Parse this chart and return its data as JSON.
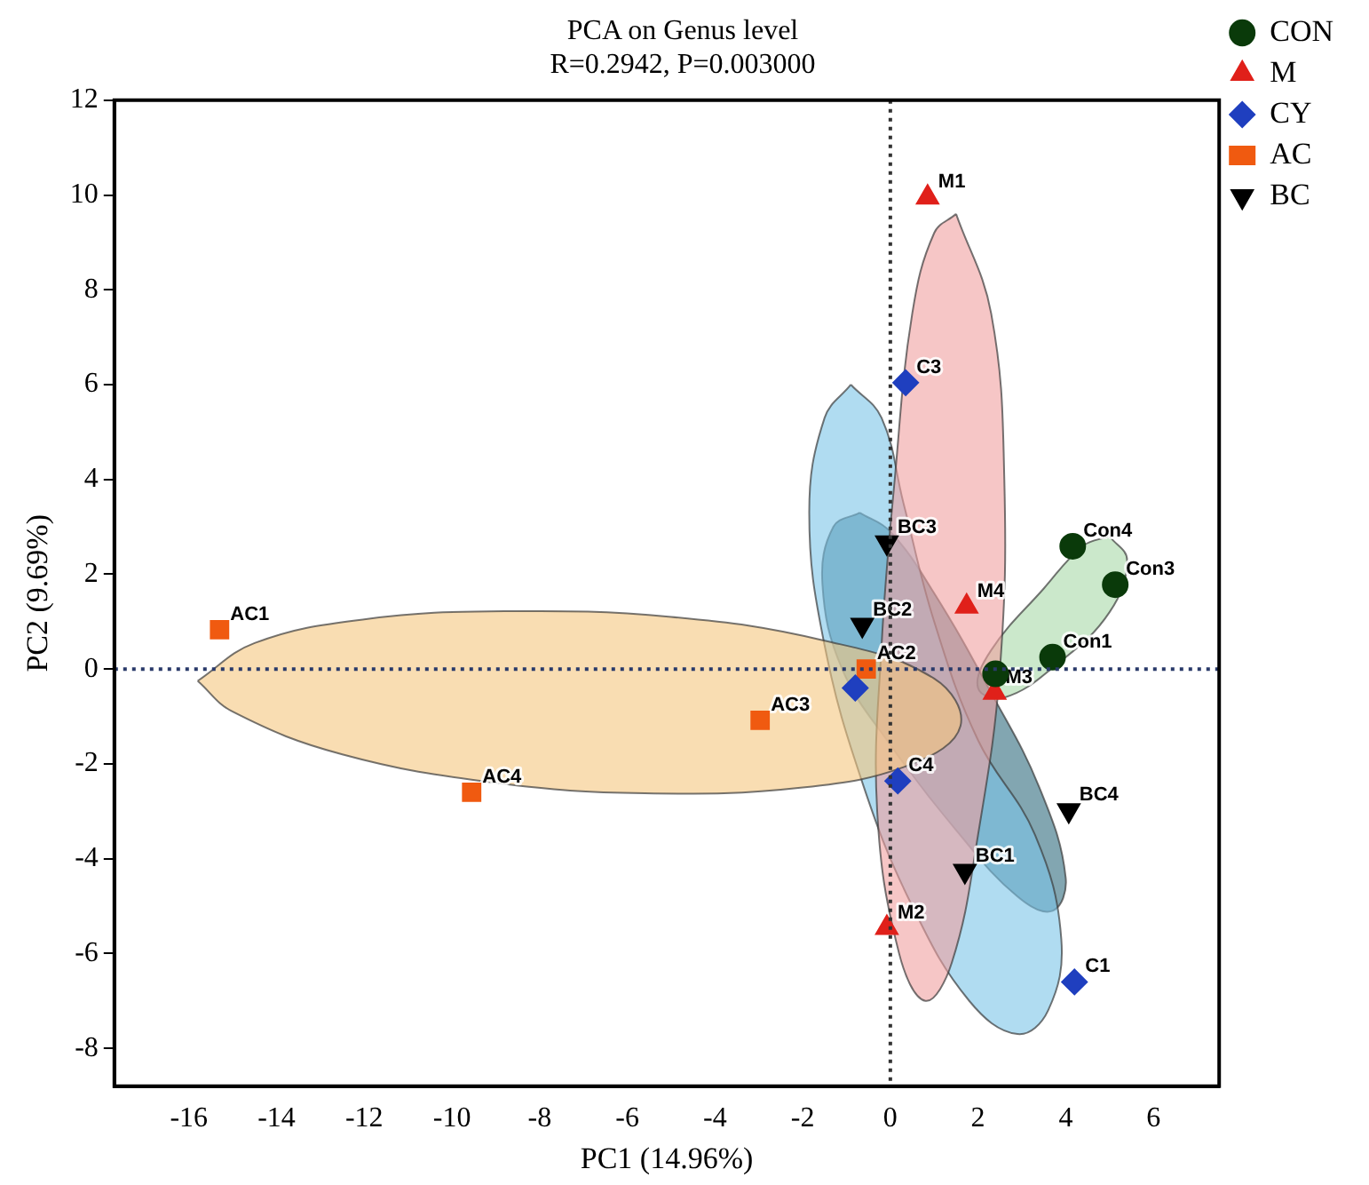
{
  "chart_data": {
    "type": "scatter",
    "title": "PCA on Genus level",
    "subtitle": "R=0.2942, P=0.003000",
    "xlabel": "PC1 (14.96%)",
    "ylabel": "PC2 (9.69%)",
    "xlim": [
      -17.7,
      7.5
    ],
    "ylim": [
      -8.8,
      12
    ],
    "xticks": [
      -16,
      -14,
      -12,
      -10,
      -8,
      -6,
      -4,
      -2,
      0,
      2,
      4,
      6
    ],
    "yticks": [
      -8,
      -6,
      -4,
      -2,
      0,
      2,
      4,
      6,
      8,
      10,
      12
    ],
    "grid": false,
    "legend": "top right",
    "series": [
      {
        "type": "area",
        "color": "#f5c77e",
        "x": [
          -15.8,
          -14.5,
          -12,
          -8.8,
          -5,
          -1.5,
          1,
          1.6,
          0.5,
          -2,
          -5.6,
          -9,
          -12.5,
          -15
        ],
        "values": [
          -0.25,
          0.55,
          1.05,
          1.22,
          1.1,
          0.6,
          -0.2,
          -1.2,
          -2.0,
          -2.5,
          -2.62,
          -2.4,
          -1.8,
          -0.9
        ]
      },
      {
        "type": "area",
        "color": "#f0a0a0",
        "x": [
          1.5,
          2.3,
          2.6,
          2.5,
          2.0,
          1.4,
          0.8,
          0.2,
          -0.3,
          -0.2,
          0.1,
          0.5,
          1.0
        ],
        "values": [
          9.6,
          7.5,
          4,
          0,
          -3.5,
          -6.2,
          -7.0,
          -6,
          -3,
          0.5,
          4,
          7.5,
          9.2
        ]
      },
      {
        "type": "area",
        "color": "#7cc4e8",
        "x": [
          -0.9,
          -0.2,
          0.3,
          1.0,
          2,
          3.3,
          3.9,
          3.6,
          2.9,
          1.8,
          0.5,
          -0.6,
          -1.5,
          -1.85,
          -1.5
        ],
        "values": [
          6.0,
          5.3,
          3.5,
          1,
          -1.5,
          -3.5,
          -5.7,
          -7.2,
          -7.7,
          -7,
          -5,
          -2.5,
          0.5,
          3.3,
          5.3
        ]
      },
      {
        "type": "area",
        "color": "#2f6b7d",
        "x": [
          -0.7,
          0,
          1,
          2.3,
          3.4,
          4.0,
          3.7,
          2.9,
          1.5,
          0,
          -1.1,
          -1.55,
          -1.3
        ],
        "values": [
          3.3,
          2.9,
          1.6,
          -0.5,
          -2.5,
          -4.4,
          -5.1,
          -4.8,
          -3.4,
          -1.6,
          0,
          1.8,
          3
        ]
      },
      {
        "type": "area",
        "color": "#a8d8a8",
        "x": [
          5.0,
          5.4,
          5.0,
          3.8,
          2.6,
          2.0,
          2.3,
          3.5,
          4.4
        ],
        "values": [
          2.8,
          2.3,
          1.2,
          0.1,
          -0.6,
          -0.4,
          0.4,
          1.7,
          2.6
        ]
      },
      {
        "name": "CON",
        "marker": "circle",
        "color": "#0a3a0a",
        "x": [
          3.7,
          2.4,
          5.13,
          4.16
        ],
        "values": [
          0.25,
          -0.1,
          1.78,
          2.59
        ]
      },
      {
        "name": "M",
        "marker": "triangle",
        "color": "#e0201a",
        "x": [
          0.85,
          -0.08,
          2.38,
          1.74
        ],
        "values": [
          9.95,
          -5.46,
          -0.5,
          1.32
        ]
      },
      {
        "name": "CY",
        "marker": "diamond",
        "color": "#1f3fbf",
        "x": [
          4.2,
          -0.8,
          0.35,
          0.17
        ],
        "values": [
          -6.6,
          -0.4,
          6.04,
          -2.36
        ]
      },
      {
        "name": "AC",
        "marker": "square",
        "color": "#f05a10",
        "x": [
          -15.3,
          -0.55,
          -2.97,
          -9.55
        ],
        "values": [
          0.83,
          0.0,
          -1.08,
          -2.6
        ]
      },
      {
        "name": "BC",
        "marker": "triangle_down",
        "color": "#000000",
        "x": [
          1.7,
          -0.64,
          -0.08,
          4.07
        ],
        "values": [
          -4.26,
          0.93,
          2.67,
          -2.98
        ]
      }
    ],
    "ref_lines": [
      {
        "axis": "x",
        "value": 0,
        "line_style": "dotted",
        "color": "#333333"
      },
      {
        "axis": "y",
        "value": 0,
        "line_style": "dotted",
        "color": "#2a3a6a"
      }
    ],
    "annotations": [
      {
        "text": "Con1",
        "x": 3.7,
        "y": 0.25
      },
      {
        "text": "Con3",
        "x": 5.13,
        "y": 1.78
      },
      {
        "text": "Con4",
        "x": 4.16,
        "y": 2.59
      },
      {
        "text": "M1",
        "x": 0.85,
        "y": 9.95
      },
      {
        "text": "M2",
        "x": -0.08,
        "y": -5.46
      },
      {
        "text": "M3",
        "x": 2.38,
        "y": -0.5
      },
      {
        "text": "M4",
        "x": 1.74,
        "y": 1.32
      },
      {
        "text": "C1",
        "x": 4.2,
        "y": -6.6
      },
      {
        "text": "C3",
        "x": 0.35,
        "y": 6.04
      },
      {
        "text": "C4",
        "x": 0.17,
        "y": -2.36
      },
      {
        "text": "AC1",
        "x": -15.3,
        "y": 0.83
      },
      {
        "text": "AC2",
        "x": -0.55,
        "y": 0.0
      },
      {
        "text": "AC3",
        "x": -2.97,
        "y": -1.08
      },
      {
        "text": "AC4",
        "x": -9.55,
        "y": -2.6
      },
      {
        "text": "BC1",
        "x": 1.7,
        "y": -4.26
      },
      {
        "text": "BC2",
        "x": -0.64,
        "y": 0.93
      },
      {
        "text": "BC3",
        "x": -0.08,
        "y": 2.67
      },
      {
        "text": "BC4",
        "x": 4.07,
        "y": -2.98
      }
    ]
  }
}
